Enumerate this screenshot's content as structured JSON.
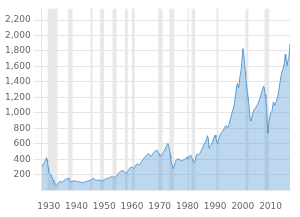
{
  "chart_data": {
    "type": "area",
    "color": "#5b9bd5",
    "grid": "y",
    "xlim": [
      1927.5,
      2017
    ],
    "ylim": [
      0,
      2350
    ],
    "xticks": [
      1930,
      1940,
      1950,
      1960,
      1970,
      1980,
      1990,
      2000,
      2010
    ],
    "yticks": [
      200,
      400,
      600,
      800,
      {
        "value": 1000,
        "label": "1,000"
      },
      {
        "value": 1200,
        "label": "1,200"
      },
      {
        "value": 1400,
        "label": "1,400"
      },
      {
        "value": 1600,
        "label": "1,600"
      },
      {
        "value": 1800,
        "label": "1,800"
      },
      {
        "value": 2000,
        "label": "2,000"
      },
      {
        "value": 2200,
        "label": "2,200"
      }
    ],
    "shade_bands": {
      "color": "#e8e8e8",
      "ranges": [
        [
          1929.6,
          1933.2
        ],
        [
          1937.0,
          1938.6
        ],
        [
          1945.0,
          1945.8
        ],
        [
          1948.5,
          1950.0
        ],
        [
          1953.0,
          1954.5
        ],
        [
          1957.5,
          1958.5
        ],
        [
          1960.0,
          1961.0
        ],
        [
          1969.5,
          1971.0
        ],
        [
          1973.5,
          1975.2
        ],
        [
          1980.0,
          1980.5
        ],
        [
          1981.5,
          1982.8
        ],
        [
          1990.5,
          1991.2
        ],
        [
          2001.0,
          2002.0
        ],
        [
          2007.8,
          2009.5
        ]
      ]
    },
    "x": [
      1927.5,
      1927.8,
      1928.0,
      1928.3,
      1928.6,
      1928.9,
      1929.0,
      1929.2,
      1929.4,
      1929.6,
      1929.8,
      1930.0,
      1930.3,
      1930.6,
      1930.9,
      1931.0,
      1931.3,
      1931.6,
      1931.9,
      1932.0,
      1932.2,
      1932.5,
      1932.7,
      1932.9,
      1933.0,
      1933.3,
      1933.6,
      1933.9,
      1934.0,
      1934.5,
      1935.0,
      1935.5,
      1936.0,
      1936.5,
      1937.0,
      1937.3,
      1937.6,
      1937.9,
      1938.0,
      1938.4,
      1938.8,
      1939.0,
      1939.5,
      1940.0,
      1940.5,
      1941.0,
      1941.5,
      1942.0,
      1942.5,
      1943.0,
      1943.5,
      1944.0,
      1944.5,
      1945.0,
      1945.4,
      1945.8,
      1946.0,
      1946.3,
      1946.6,
      1946.9,
      1947.0,
      1947.5,
      1948.0,
      1948.4,
      1948.8,
      1949.0,
      1949.5,
      1950.0,
      1950.5,
      1951.0,
      1951.5,
      1952.0,
      1952.5,
      1953.0,
      1953.3,
      1953.6,
      1953.9,
      1954.0,
      1954.5,
      1955.0,
      1955.5,
      1956.0,
      1956.5,
      1957.0,
      1957.3,
      1957.6,
      1957.9,
      1958.0,
      1958.4,
      1958.8,
      1959.0,
      1959.5,
      1960.0,
      1960.3,
      1960.6,
      1960.9,
      1961.0,
      1961.5,
      1962.0,
      1962.5,
      1963.0,
      1963.5,
      1964.0,
      1964.5,
      1965.0,
      1965.5,
      1966.0,
      1966.5,
      1967.0,
      1967.5,
      1968.0,
      1968.5,
      1969.0,
      1969.3,
      1969.6,
      1969.9,
      1970.0,
      1970.5,
      1971.0,
      1971.5,
      1972.0,
      1972.5,
      1973.0,
      1973.3,
      1973.6,
      1973.9,
      1974.0,
      1974.3,
      1974.6,
      1974.9,
      1975.0,
      1975.5,
      1976.0,
      1976.5,
      1977.0,
      1977.5,
      1978.0,
      1978.5,
      1979.0,
      1979.5,
      1980.0,
      1980.2,
      1980.5,
      1980.8,
      1981.0,
      1981.3,
      1981.6,
      1981.9,
      1982.0,
      1982.3,
      1982.6,
      1982.9,
      1983.0,
      1983.5,
      1984.0,
      1984.5,
      1985.0,
      1985.5,
      1986.0,
      1986.5,
      1987.0,
      1987.2,
      1987.5,
      1987.8,
      1988.0,
      1988.5,
      1989.0,
      1989.5,
      1990.0,
      1990.3,
      1990.6,
      1990.9,
      1991.0,
      1991.5,
      1992.0,
      1992.5,
      1993.0,
      1993.5,
      1994.0,
      1994.5,
      1995.0,
      1995.5,
      1996.0,
      1996.5,
      1997.0,
      1997.5,
      1998.0,
      1998.5,
      1999.0,
      1999.5,
      2000.0,
      2000.3,
      2000.6,
      2000.9,
      2001.0,
      2001.3,
      2001.6,
      2001.9,
      2002.0,
      2002.3,
      2002.6,
      2002.9,
      2003.0,
      2003.5,
      2004.0,
      2004.5,
      2005.0,
      2005.5,
      2006.0,
      2006.5,
      2007.0,
      2007.5,
      2007.8,
      2008.0,
      2008.3,
      2008.6,
      2008.9,
      2009.0,
      2009.5,
      2010.0,
      2010.5,
      2011.0,
      2011.5,
      2012.0,
      2012.5,
      2013.0,
      2013.5,
      2014.0,
      2014.5,
      2015.0,
      2015.3,
      2015.5,
      2015.8,
      2016.0,
      2016.3,
      2016.6,
      2016.9,
      2017.0
    ],
    "values": [
      295,
      310,
      335,
      355,
      375,
      390,
      410,
      420,
      395,
      355,
      295,
      245,
      215,
      210,
      195,
      185,
      158,
      130,
      110,
      95,
      78,
      65,
      60,
      65,
      70,
      90,
      100,
      108,
      112,
      108,
      110,
      122,
      138,
      148,
      155,
      145,
      128,
      112,
      105,
      112,
      118,
      120,
      122,
      115,
      110,
      108,
      104,
      97,
      101,
      108,
      114,
      118,
      124,
      130,
      140,
      150,
      152,
      145,
      135,
      130,
      128,
      130,
      132,
      130,
      125,
      120,
      125,
      133,
      143,
      153,
      160,
      165,
      172,
      175,
      168,
      163,
      163,
      170,
      188,
      212,
      232,
      248,
      250,
      252,
      242,
      228,
      218,
      215,
      240,
      265,
      275,
      295,
      300,
      290,
      287,
      285,
      298,
      328,
      345,
      320,
      340,
      370,
      398,
      422,
      442,
      460,
      475,
      440,
      440,
      470,
      490,
      510,
      518,
      503,
      483,
      465,
      450,
      442,
      470,
      498,
      535,
      575,
      605,
      565,
      515,
      448,
      400,
      358,
      308,
      278,
      288,
      342,
      392,
      408,
      398,
      388,
      378,
      392,
      398,
      415,
      428,
      405,
      422,
      445,
      450,
      438,
      418,
      398,
      380,
      365,
      355,
      390,
      428,
      465,
      462,
      472,
      512,
      548,
      595,
      622,
      668,
      705,
      678,
      542,
      562,
      582,
      620,
      675,
      712,
      675,
      618,
      598,
      628,
      685,
      732,
      752,
      778,
      815,
      835,
      805,
      845,
      918,
      992,
      1048,
      1122,
      1272,
      1382,
      1325,
      1475,
      1588,
      1832,
      1775,
      1658,
      1535,
      1475,
      1375,
      1278,
      1195,
      1162,
      1062,
      925,
      895,
      895,
      985,
      1038,
      1058,
      1092,
      1118,
      1172,
      1228,
      1292,
      1345,
      1308,
      1232,
      1178,
      1085,
      792,
      738,
      908,
      995,
      1022,
      1142,
      1098,
      1142,
      1195,
      1298,
      1415,
      1522,
      1568,
      1648,
      1755,
      1688,
      1635,
      1612,
      1695,
      1718,
      1845,
      1895
    ]
  }
}
